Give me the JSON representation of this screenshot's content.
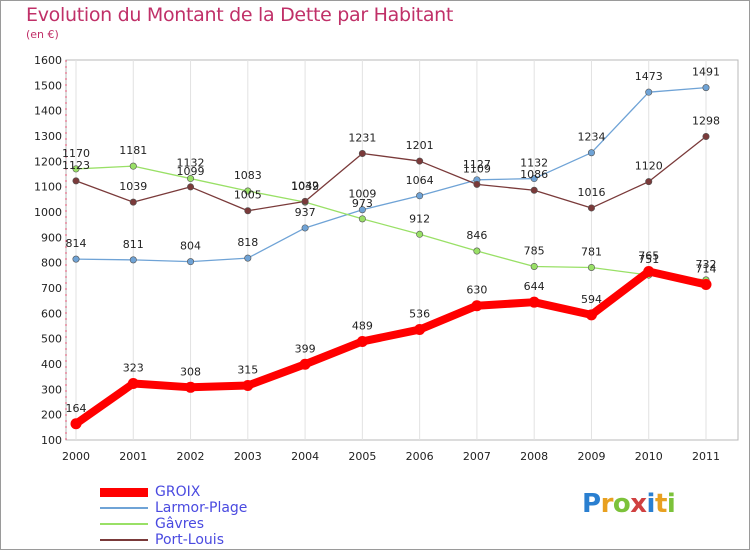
{
  "header": {
    "title": "Evolution du Montant de la Dette par Habitant",
    "subtitle": "(en €)"
  },
  "brand": {
    "logo_letters": [
      "P",
      "r",
      "o",
      "x",
      "i",
      "t",
      "i"
    ]
  },
  "chart_data": {
    "type": "line",
    "title": "Evolution du Montant de la Dette par Habitant",
    "subtitle": "(en €)",
    "xlabel": "",
    "ylabel": "",
    "x": [
      "2000",
      "2001",
      "2002",
      "2003",
      "2004",
      "2005",
      "2006",
      "2007",
      "2008",
      "2009",
      "2010",
      "2011"
    ],
    "ylim": [
      100,
      1600
    ],
    "yticks": [
      100,
      200,
      300,
      400,
      500,
      600,
      700,
      800,
      900,
      1000,
      1100,
      1200,
      1300,
      1400,
      1500,
      1600
    ],
    "grid": "vertical",
    "legend_position": "bottom-left",
    "series": [
      {
        "name": "GROIX",
        "color": "#ff0000",
        "values": [
          164,
          323,
          308,
          315,
          399,
          489,
          536,
          630,
          644,
          594,
          765,
          714
        ]
      },
      {
        "name": "Larmor-Plage",
        "color": "#6fa3d6",
        "values": [
          814,
          811,
          804,
          818,
          937,
          1009,
          1064,
          1127,
          1132,
          1234,
          1473,
          1491
        ]
      },
      {
        "name": "Gâvres",
        "color": "#99e066",
        "values": [
          1170,
          1181,
          1132,
          1083,
          1039,
          973,
          912,
          846,
          785,
          781,
          751,
          732
        ]
      },
      {
        "name": "Port-Louis",
        "color": "#7a3a3a",
        "values": [
          1123,
          1039,
          1099,
          1005,
          1042,
          1231,
          1201,
          1109,
          1086,
          1016,
          1120,
          1298
        ]
      }
    ]
  }
}
